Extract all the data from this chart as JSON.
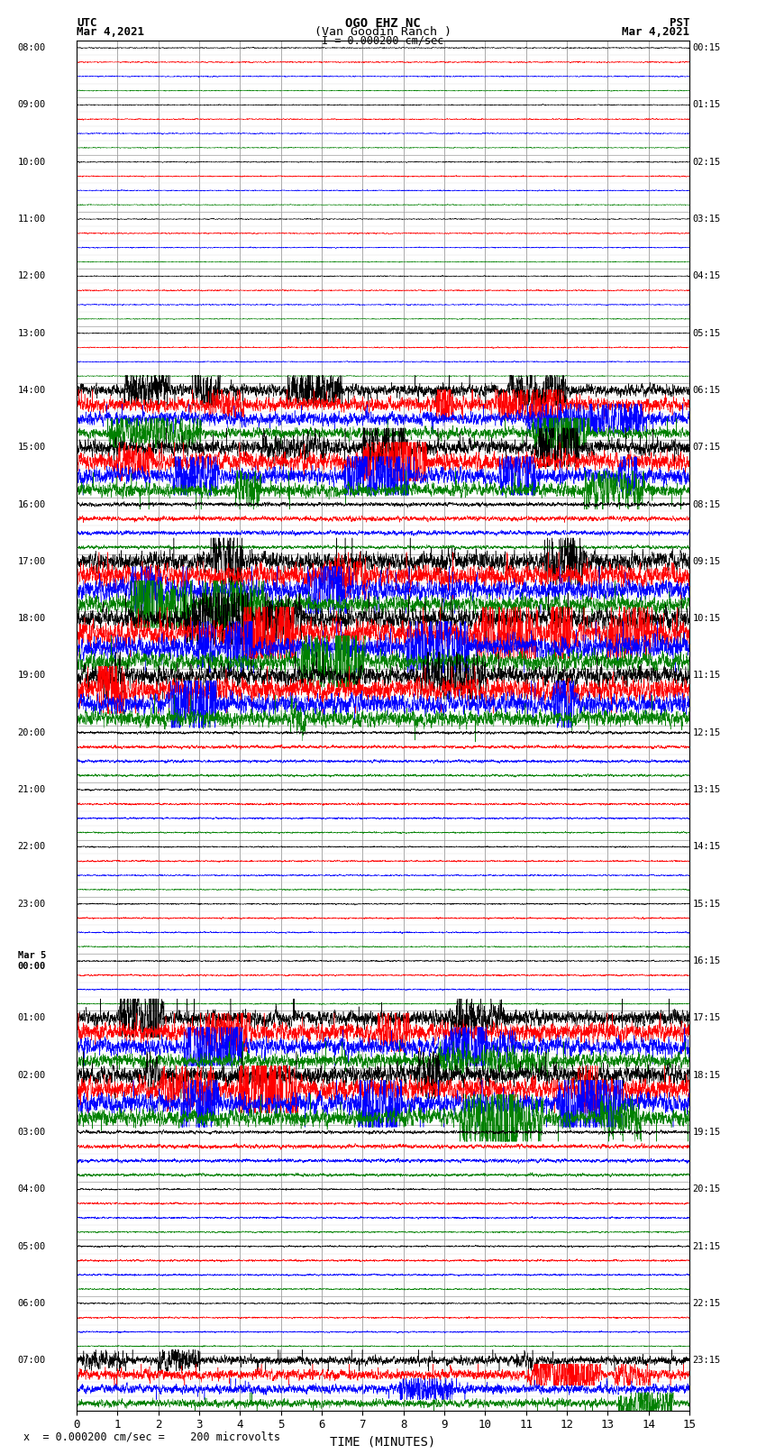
{
  "title_line1": "OGO EHZ NC",
  "title_line2": "(Van Goodin Ranch )",
  "title_line3": "I = 0.000200 cm/sec",
  "left_label_line1": "UTC",
  "left_label_line2": "Mar 4,2021",
  "right_label_line1": "PST",
  "right_label_line2": "Mar 4,2021",
  "xlabel": "TIME (MINUTES)",
  "bottom_label": "x  = 0.000200 cm/sec =    200 microvolts",
  "xlim": [
    0,
    15
  ],
  "xticks": [
    0,
    1,
    2,
    3,
    4,
    5,
    6,
    7,
    8,
    9,
    10,
    11,
    12,
    13,
    14,
    15
  ],
  "background_color": "#ffffff",
  "trace_colors": [
    "black",
    "red",
    "blue",
    "green"
  ],
  "utc_labels": [
    "08:00",
    "09:00",
    "10:00",
    "11:00",
    "12:00",
    "13:00",
    "14:00",
    "15:00",
    "16:00",
    "17:00",
    "18:00",
    "19:00",
    "20:00",
    "21:00",
    "22:00",
    "23:00",
    "Mar 5\n00:00",
    "01:00",
    "02:00",
    "03:00",
    "04:00",
    "05:00",
    "06:00",
    "07:00"
  ],
  "pst_labels": [
    "00:15",
    "01:15",
    "02:15",
    "03:15",
    "04:15",
    "05:15",
    "06:15",
    "07:15",
    "08:15",
    "09:15",
    "10:15",
    "11:15",
    "12:15",
    "13:15",
    "14:15",
    "15:15",
    "16:15",
    "17:15",
    "18:15",
    "19:15",
    "20:15",
    "21:15",
    "22:15",
    "23:15"
  ],
  "n_hours": 24,
  "traces_per_hour": 4,
  "figsize": [
    8.5,
    16.13
  ],
  "dpi": 100,
  "noise_levels": [
    0.03,
    0.03,
    0.03,
    0.03,
    0.03,
    0.03,
    0.35,
    0.45,
    0.12,
    0.55,
    0.6,
    0.55,
    0.08,
    0.05,
    0.04,
    0.04,
    0.04,
    0.45,
    0.55,
    0.1,
    0.05,
    0.05,
    0.04,
    0.25
  ]
}
